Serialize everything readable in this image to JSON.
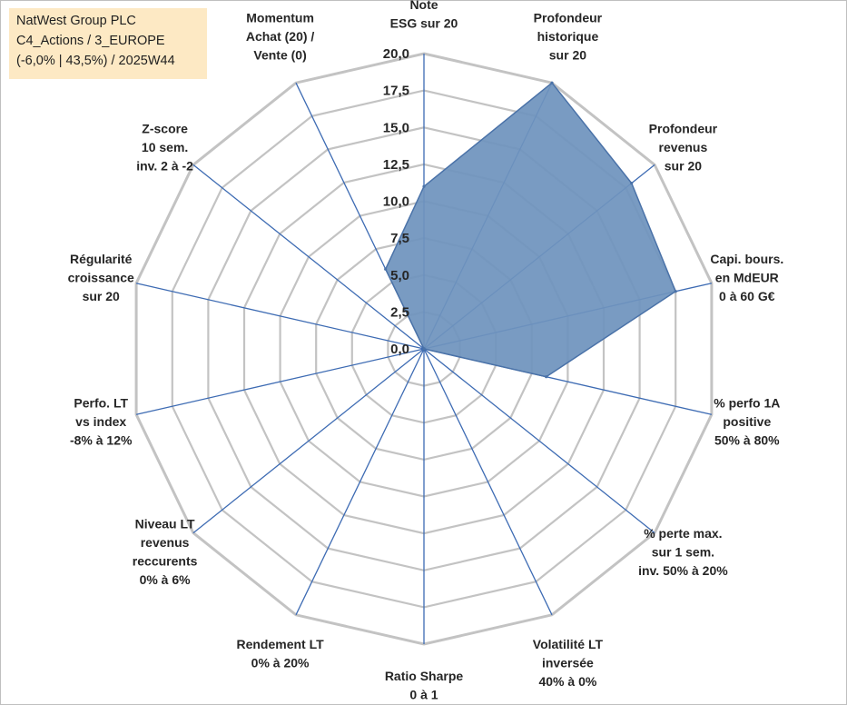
{
  "title_box": {
    "line1": "NatWest Group PLC",
    "line2": "C4_Actions / 3_EUROPE",
    "line3": "(-6,0% | 43,5%) / 2025W44"
  },
  "chart_data": {
    "type": "radar",
    "rmin": 0,
    "rmax": 20,
    "tick_labels": [
      "0,0",
      "2,5",
      "5,0",
      "7,5",
      "10,0",
      "12,5",
      "15,0",
      "17,5",
      "20,0"
    ],
    "axes": [
      [
        "Note",
        "ESG sur 20"
      ],
      [
        "Profondeur",
        "historique",
        "sur 20"
      ],
      [
        "Profondeur",
        "revenus",
        "sur 20"
      ],
      [
        "Capi. bours.",
        "en MdEUR",
        "0 à 60 G€"
      ],
      [
        "% perfo 1A",
        "positive",
        "50% à 80%"
      ],
      [
        "% perte max.",
        "sur 1 sem.",
        "inv. 50% à 20%"
      ],
      [
        "Volatilité LT",
        "inversée",
        "40% à 0%"
      ],
      [
        "Ratio Sharpe",
        "0 à 1"
      ],
      [
        "Rendement LT",
        "0% à 20%"
      ],
      [
        "Niveau LT",
        "revenus",
        "reccurents",
        "0% à 6%"
      ],
      [
        "Perfo. LT",
        "vs index",
        "-8% à 12%"
      ],
      [
        "Régularité",
        "croissance",
        "sur 20"
      ],
      [
        "Z-score",
        "10 sem.",
        "inv. 2 à -2"
      ],
      [
        "Momentum",
        "Achat (20) /",
        "Vente (0)"
      ]
    ],
    "series": [
      {
        "values": [
          11,
          20,
          18,
          17.5,
          8.5,
          0,
          0,
          0,
          0,
          0,
          0,
          0,
          0,
          6
        ]
      }
    ],
    "colors": {
      "fill": "#6f93bd",
      "stroke": "#4a72a8",
      "grid": "#c3c3c3",
      "spoke": "#3d6bb3"
    },
    "grid": true
  }
}
